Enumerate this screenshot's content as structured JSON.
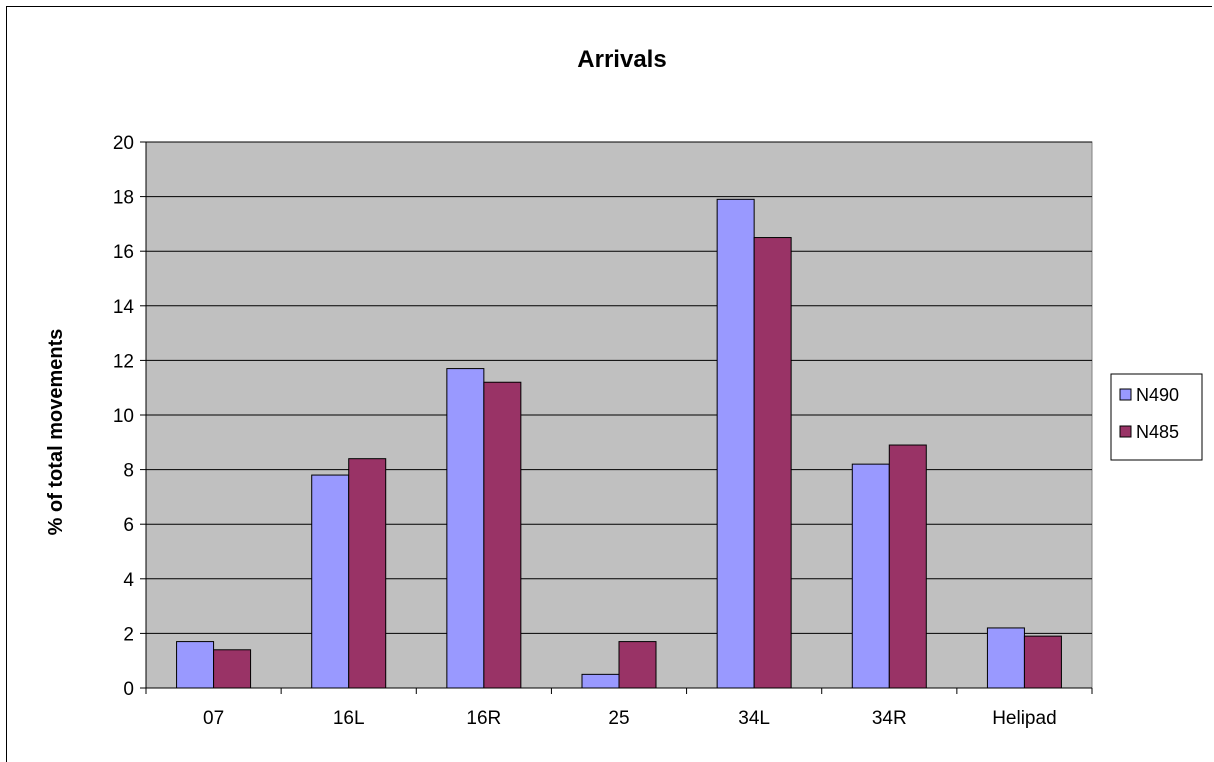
{
  "chart_data": {
    "type": "bar",
    "title": "Arrivals",
    "xlabel": "",
    "ylabel": "% of total movements",
    "categories": [
      "07",
      "16L",
      "16R",
      "25",
      "34L",
      "34R",
      "Helipad"
    ],
    "series": [
      {
        "name": "N490",
        "color": "#9999ff",
        "values": [
          1.7,
          7.8,
          11.7,
          0.5,
          17.9,
          8.2,
          2.2
        ]
      },
      {
        "name": "N485",
        "color": "#993366",
        "values": [
          1.4,
          8.4,
          11.2,
          1.7,
          16.5,
          8.9,
          1.9
        ]
      }
    ],
    "ylim": [
      0,
      20
    ],
    "yticks": [
      0,
      2,
      4,
      6,
      8,
      10,
      12,
      14,
      16,
      18,
      20
    ],
    "grid": true,
    "legend": "right",
    "plot_background": "#c0c0c0"
  }
}
